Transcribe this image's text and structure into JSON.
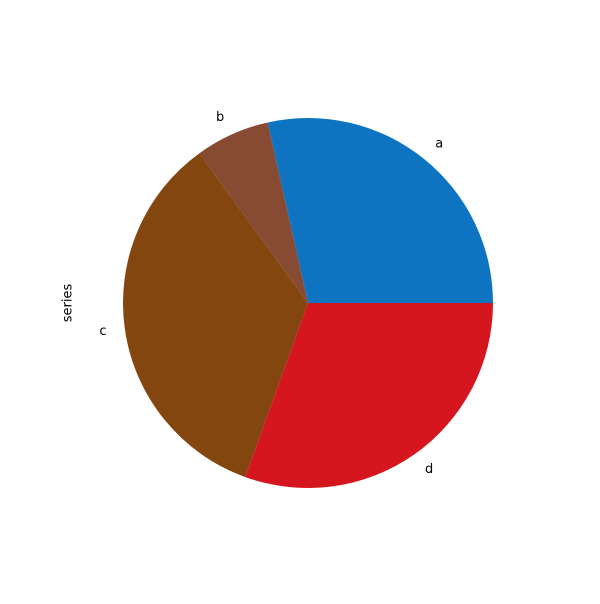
{
  "chart_data": {
    "type": "pie",
    "title": "",
    "ylabel": "series",
    "start_angle_deg": 0,
    "direction": "counterclockwise",
    "categories": [
      "a",
      "b",
      "c",
      "d"
    ],
    "values": [
      28.5,
      6.5,
      34.5,
      30.5
    ],
    "colors": [
      "#0e74c2",
      "#874a33",
      "#84460f",
      "#d6161f"
    ],
    "legend": "none",
    "grid": false
  }
}
